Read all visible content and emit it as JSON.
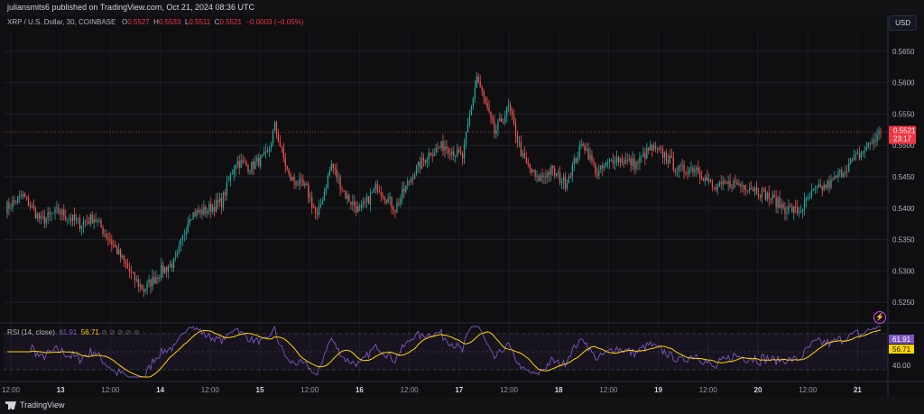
{
  "header": {
    "published": "juliansmits6 published on TradingView.com, Oct 21, 2024 08:36 UTC",
    "currency": "USD"
  },
  "legend": {
    "symbol": "XRP / U.S. Dollar, 30, COINBASE",
    "o_label": "O",
    "o": "0.5527",
    "h_label": "H",
    "h": "0.5533",
    "l_label": "L",
    "l": "0.5511",
    "c_label": "C",
    "c": "0.5521",
    "change": "−0.0003 (−0.05%)"
  },
  "price_tag": {
    "value": "0.5521",
    "countdown": "23:17"
  },
  "rsi": {
    "label": "RSI (14, close)",
    "value1": "61.91",
    "value2": "56.71",
    "tag1": "61.91",
    "tag2": "56.71",
    "level": "40.00"
  },
  "footer": {
    "brand": "TradingView"
  },
  "colors": {
    "up": "#26a69a",
    "down": "#ef5350",
    "rsi": "#7e57c2",
    "rsi_ma": "#ffd400",
    "bg": "#0f0f12"
  },
  "chart_data": {
    "type": "candlestick",
    "y_ticks": [
      0.565,
      0.56,
      0.555,
      0.55,
      0.545,
      0.54,
      0.535,
      0.53,
      0.525
    ],
    "ylim": [
      0.522,
      0.568
    ],
    "x_ticks": [
      "12:00",
      "13",
      "12:00",
      "14",
      "12:00",
      "15",
      "12:00",
      "16",
      "12:00",
      "17",
      "12:00",
      "18",
      "12:00",
      "19",
      "12:00",
      "20",
      "12:00",
      "21"
    ],
    "anchors": [
      [
        0,
        0.54
      ],
      [
        10,
        0.542
      ],
      [
        20,
        0.538
      ],
      [
        30,
        0.5395
      ],
      [
        42,
        0.5375
      ],
      [
        50,
        0.5385
      ],
      [
        60,
        0.5345
      ],
      [
        72,
        0.529
      ],
      [
        78,
        0.527
      ],
      [
        88,
        0.53
      ],
      [
        96,
        0.5315
      ],
      [
        104,
        0.539
      ],
      [
        112,
        0.5395
      ],
      [
        122,
        0.541
      ],
      [
        130,
        0.5475
      ],
      [
        138,
        0.5465
      ],
      [
        148,
        0.5485
      ],
      [
        152,
        0.553
      ],
      [
        160,
        0.545
      ],
      [
        170,
        0.543
      ],
      [
        176,
        0.5385
      ],
      [
        184,
        0.547
      ],
      [
        192,
        0.542
      ],
      [
        200,
        0.5395
      ],
      [
        210,
        0.5435
      ],
      [
        220,
        0.54
      ],
      [
        230,
        0.5455
      ],
      [
        240,
        0.549
      ],
      [
        248,
        0.55
      ],
      [
        258,
        0.548
      ],
      [
        266,
        0.561
      ],
      [
        276,
        0.552
      ],
      [
        284,
        0.556
      ],
      [
        292,
        0.548
      ],
      [
        300,
        0.5445
      ],
      [
        308,
        0.546
      ],
      [
        316,
        0.544
      ],
      [
        326,
        0.5505
      ],
      [
        334,
        0.5455
      ],
      [
        344,
        0.548
      ],
      [
        356,
        0.547
      ],
      [
        364,
        0.5495
      ],
      [
        372,
        0.5485
      ],
      [
        380,
        0.546
      ],
      [
        390,
        0.5465
      ],
      [
        400,
        0.543
      ],
      [
        410,
        0.544
      ],
      [
        420,
        0.5435
      ],
      [
        430,
        0.542
      ],
      [
        440,
        0.54
      ],
      [
        448,
        0.5395
      ],
      [
        456,
        0.5425
      ],
      [
        466,
        0.544
      ],
      [
        476,
        0.547
      ],
      [
        484,
        0.549
      ],
      [
        494,
        0.5521
      ]
    ]
  }
}
